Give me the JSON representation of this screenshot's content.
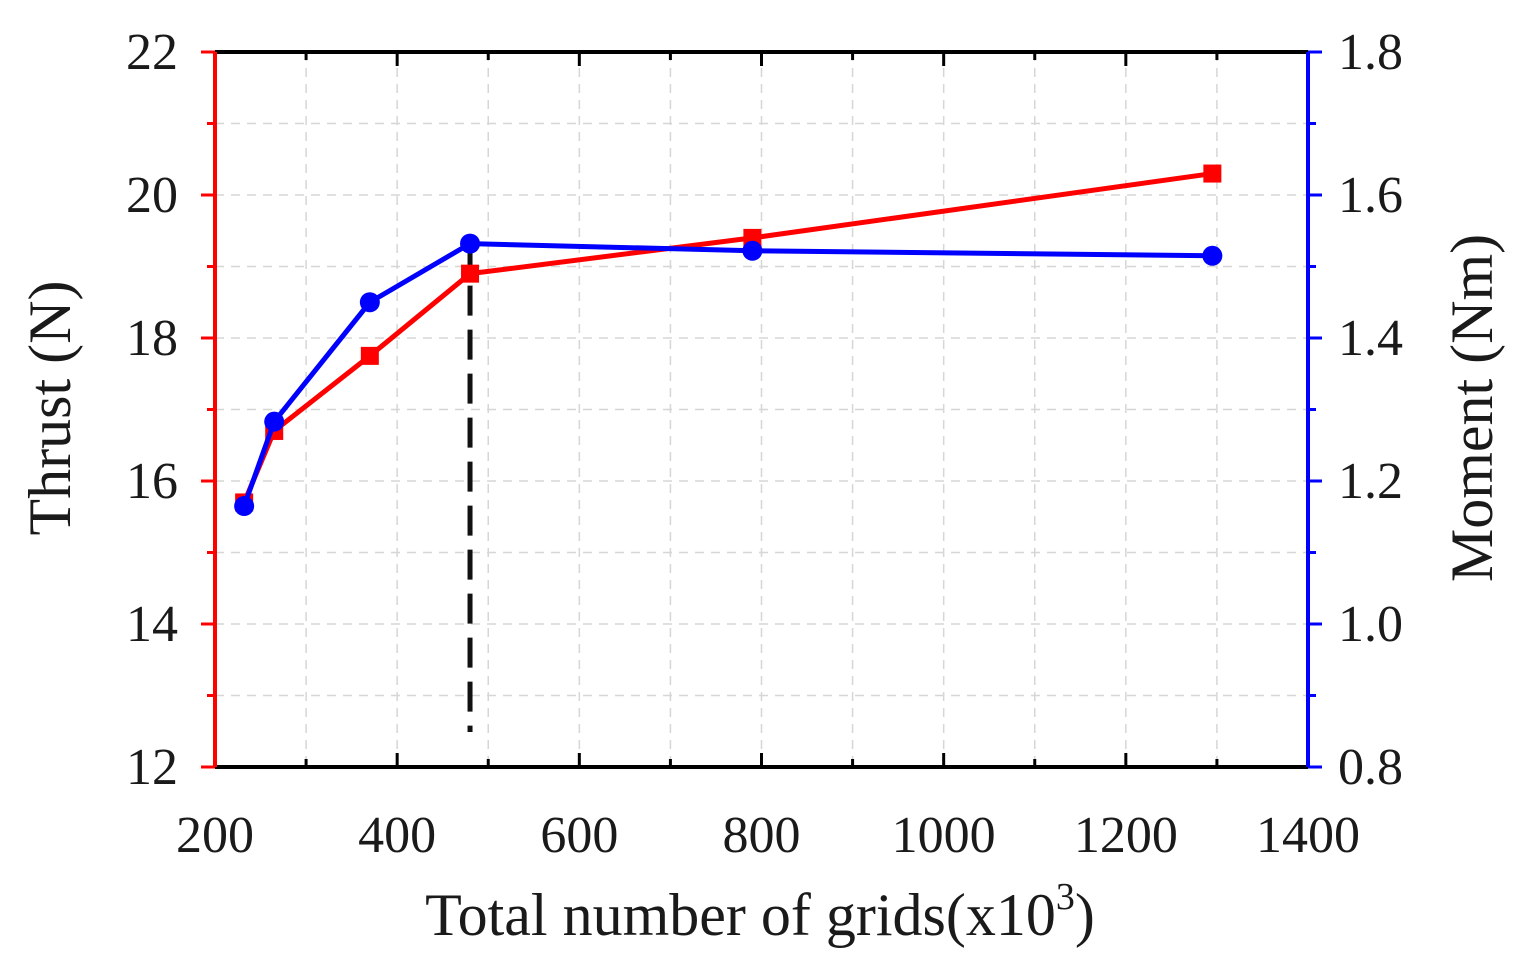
{
  "chart_data": {
    "type": "line",
    "title": "",
    "xlabel": "Total number of grids(x10",
    "xlabel_sup": "3",
    "xlabel_end": ")",
    "ylabel_left": "Thrust (N)",
    "ylabel_right": "Moment (Nm)",
    "xlim": [
      200,
      1400
    ],
    "ylim_left": [
      12,
      22
    ],
    "ylim_right": [
      0.8,
      1.8
    ],
    "grid": true,
    "x_ticks": [
      "200",
      "400",
      "600",
      "800",
      "1000",
      "1200",
      "1400"
    ],
    "left_ticks": [
      "12",
      "14",
      "16",
      "18",
      "20",
      "22"
    ],
    "right_ticks": [
      "0.8",
      "1.0",
      "1.2",
      "1.4",
      "1.6",
      "1.8"
    ],
    "reference_line_x": 480,
    "series": [
      {
        "name": "Thrust",
        "axis": "left",
        "color": "#ff0000",
        "marker": "square",
        "x": [
          232,
          265,
          370,
          480,
          790,
          1295
        ],
        "values": [
          15.7,
          16.7,
          17.75,
          18.9,
          19.4,
          20.3
        ]
      },
      {
        "name": "Moment",
        "axis": "right",
        "color": "#0000ff",
        "marker": "circle",
        "x": [
          232,
          265,
          370,
          480,
          790,
          1295
        ],
        "values": [
          1.165,
          1.283,
          1.45,
          1.532,
          1.522,
          1.515
        ]
      }
    ]
  }
}
